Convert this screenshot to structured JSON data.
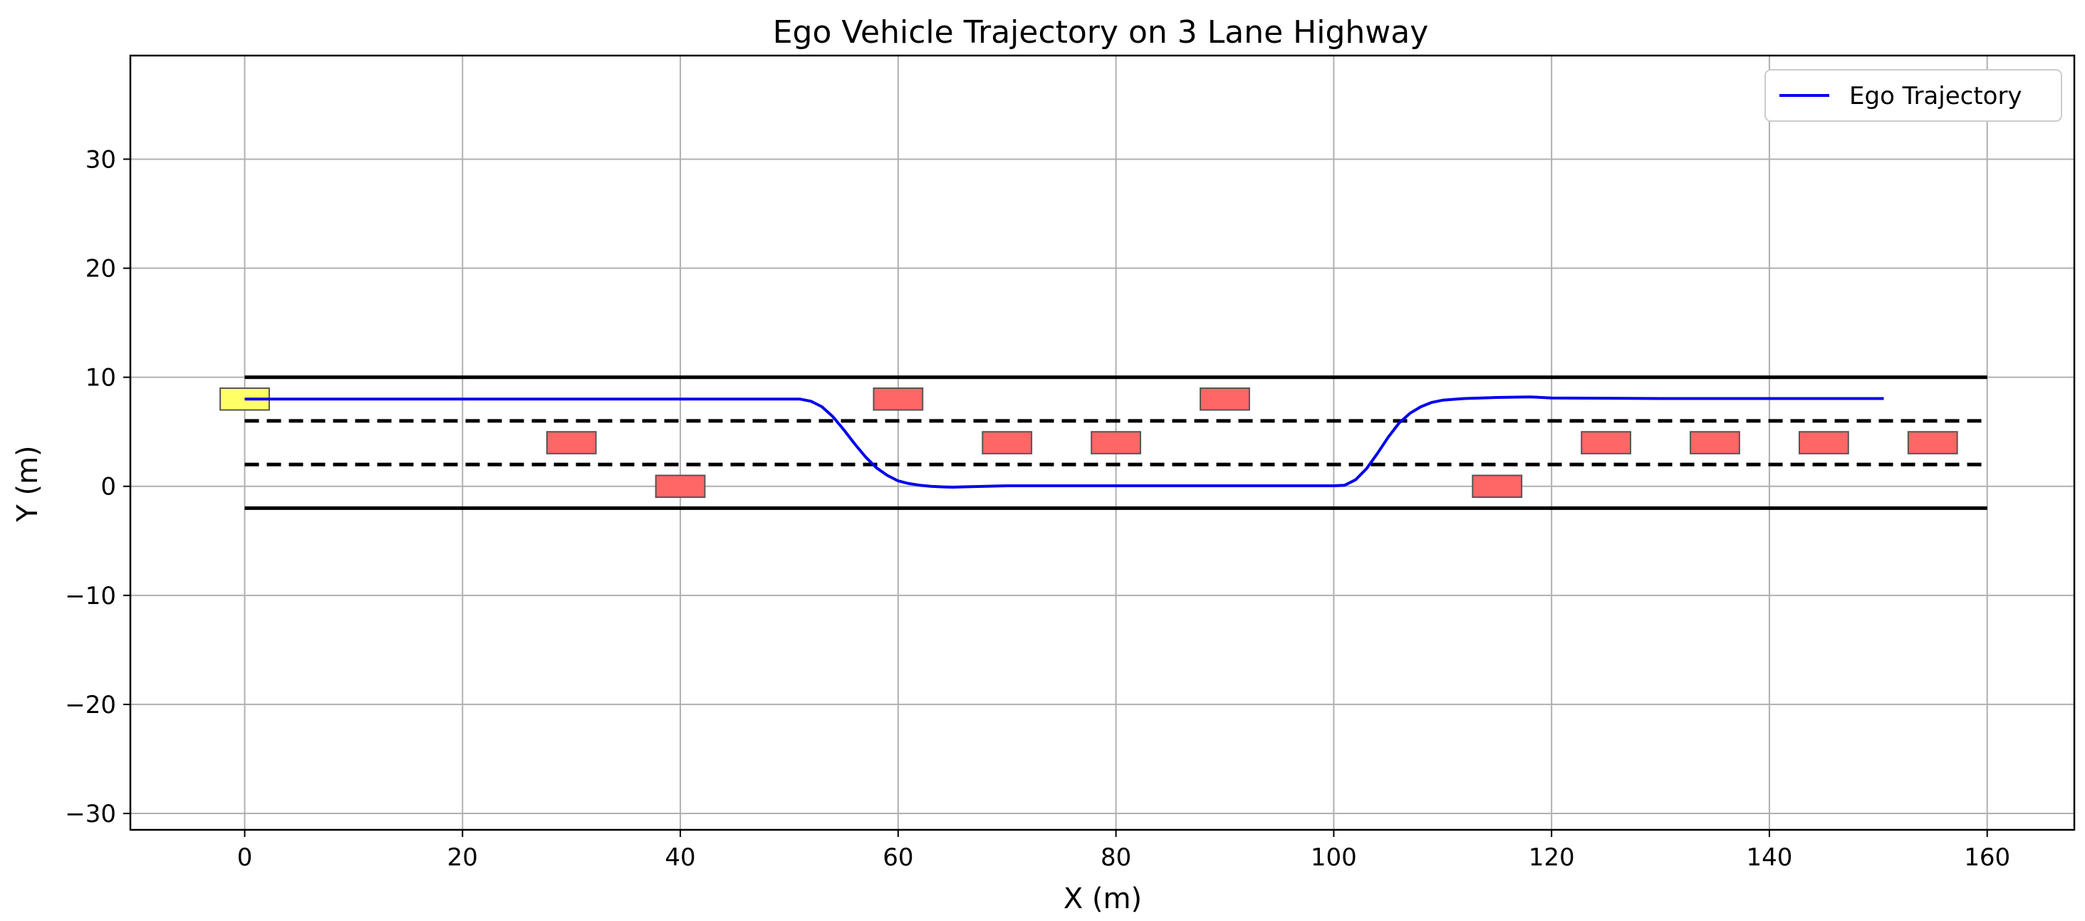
{
  "chart_data": {
    "type": "line",
    "title": "Ego Vehicle Trajectory on 3 Lane Highway",
    "xlabel": "X (m)",
    "ylabel": "Y (m)",
    "xlim": [
      -10.5,
      168
    ],
    "ylim": [
      -31.5,
      39.5
    ],
    "xticks": [
      0,
      20,
      40,
      60,
      80,
      100,
      120,
      140,
      160
    ],
    "yticks": [
      -30,
      -20,
      -10,
      0,
      10,
      20,
      30
    ],
    "xtick_labels": [
      "0",
      "20",
      "40",
      "60",
      "80",
      "100",
      "120",
      "140",
      "160"
    ],
    "ytick_labels": [
      "−30",
      "−20",
      "−10",
      "0",
      "10",
      "20",
      "30"
    ],
    "grid": true,
    "legend_position": "top-right",
    "series": [
      {
        "name": "Ego Trajectory",
        "color": "#0000ee",
        "x": [
          0,
          10,
          20,
          30,
          40,
          50,
          51,
          52,
          53,
          54,
          55,
          56,
          57,
          58,
          59,
          60,
          61,
          62,
          63,
          64,
          65,
          66,
          68,
          70,
          75,
          80,
          90,
          100,
          101,
          102,
          103,
          104,
          105,
          106,
          107,
          108,
          109,
          110,
          112,
          115,
          118,
          120,
          130,
          140,
          150.5
        ],
        "y": [
          8,
          8,
          8,
          8,
          8,
          8,
          8,
          7.8,
          7.3,
          6.4,
          5.2,
          3.9,
          2.7,
          1.7,
          1.0,
          0.5,
          0.25,
          0.1,
          0.0,
          -0.05,
          -0.08,
          -0.05,
          0.0,
          0.05,
          0.05,
          0.05,
          0.05,
          0.05,
          0.1,
          0.6,
          1.6,
          3.0,
          4.5,
          5.8,
          6.7,
          7.3,
          7.7,
          7.9,
          8.05,
          8.15,
          8.2,
          8.1,
          8.05,
          8.05,
          8.05
        ]
      }
    ],
    "road_boundaries": {
      "color": "#000000",
      "x_range": [
        0,
        160
      ],
      "solid_y": [
        10,
        -2
      ],
      "dashed_y": [
        6,
        2
      ]
    },
    "ego_vehicle": {
      "x": 0,
      "y": 8,
      "length": 4.5,
      "width": 2,
      "color": "#ffff66"
    },
    "other_vehicles": {
      "color": "#ff6666",
      "length": 4.5,
      "width": 2,
      "positions": [
        {
          "x": 30,
          "y": 4
        },
        {
          "x": 40,
          "y": 0
        },
        {
          "x": 60,
          "y": 8
        },
        {
          "x": 70,
          "y": 4
        },
        {
          "x": 80,
          "y": 4
        },
        {
          "x": 90,
          "y": 8
        },
        {
          "x": 115,
          "y": 0
        },
        {
          "x": 125,
          "y": 4
        },
        {
          "x": 135,
          "y": 4
        },
        {
          "x": 145,
          "y": 4
        },
        {
          "x": 155,
          "y": 4
        }
      ]
    }
  }
}
